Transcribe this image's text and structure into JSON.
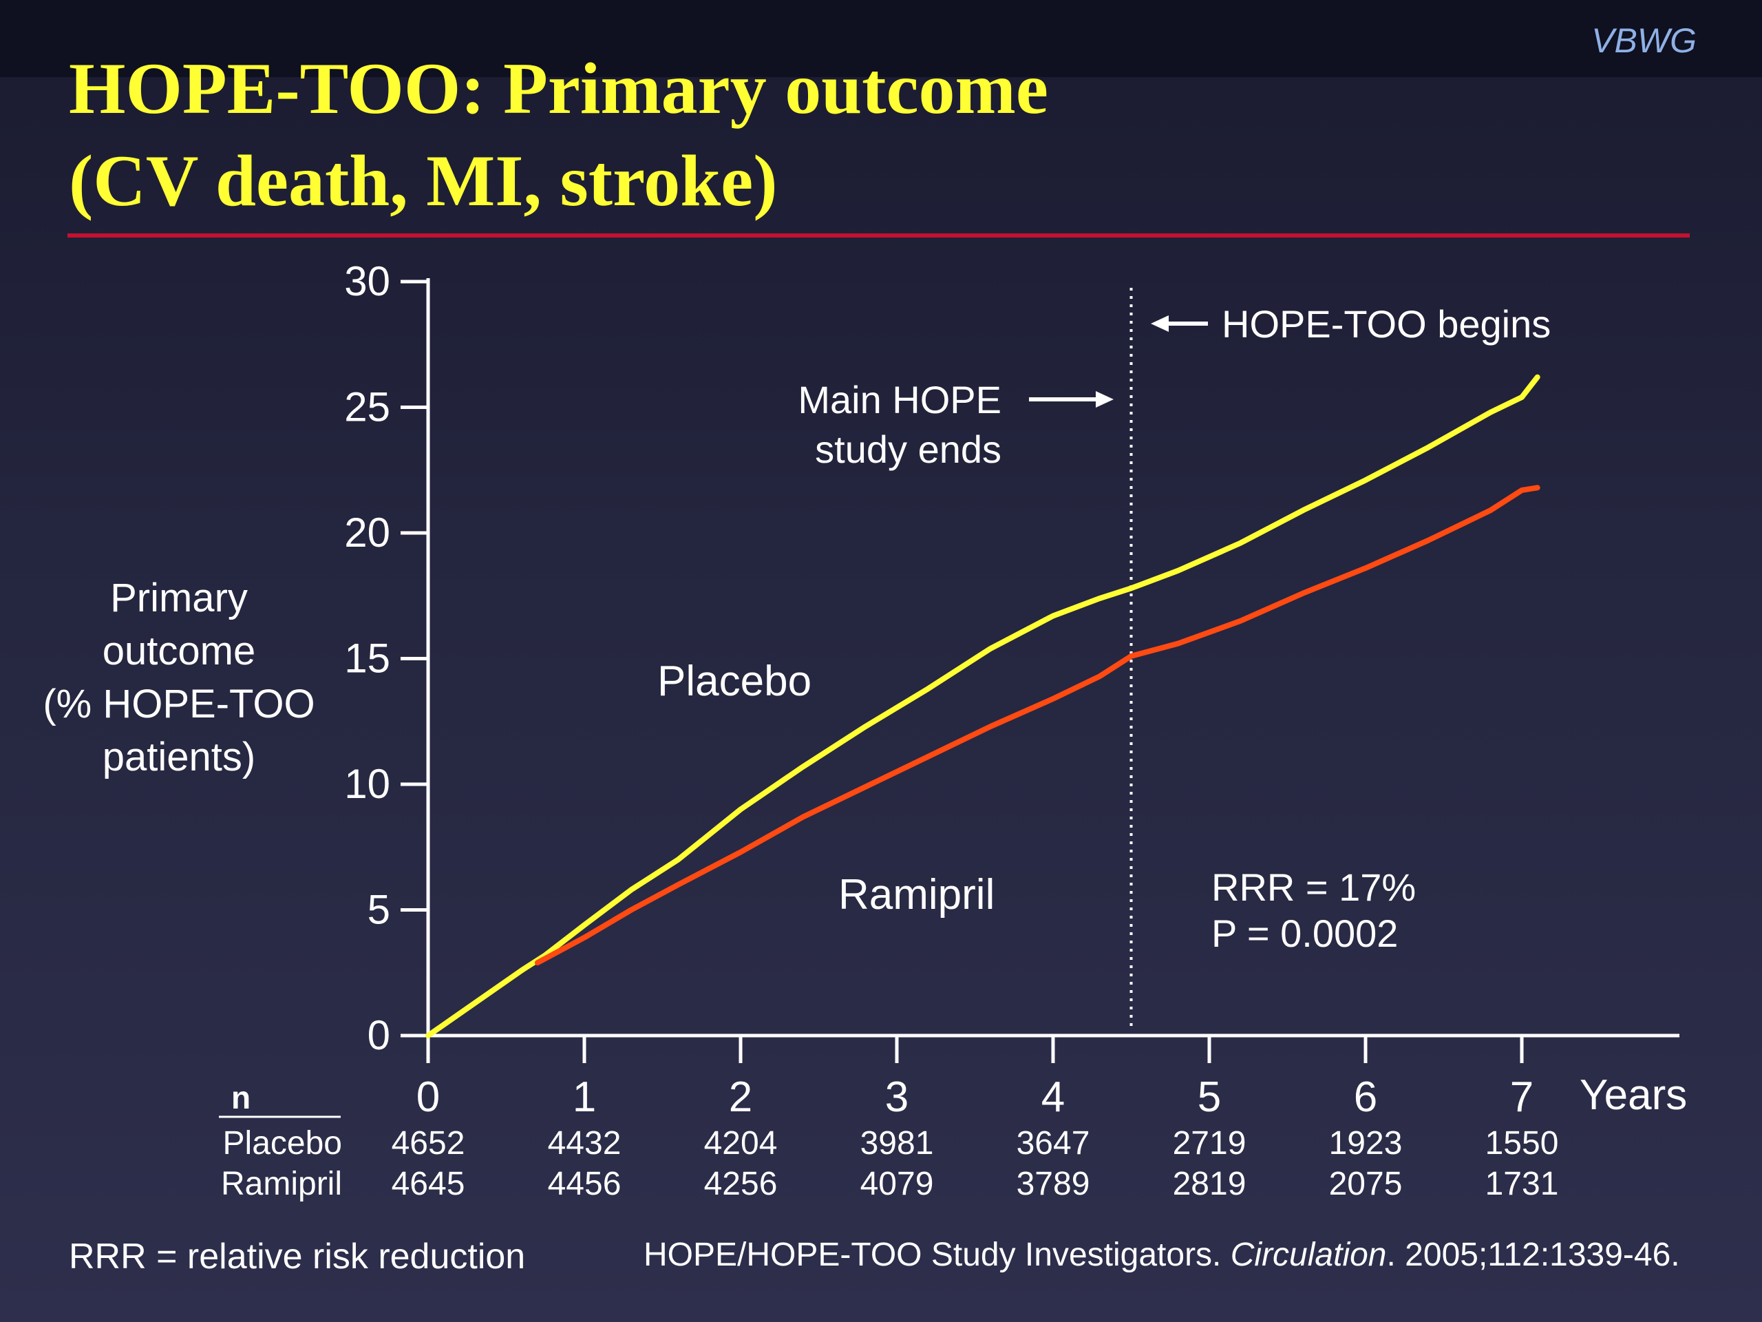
{
  "brand": "VBWG",
  "title": {
    "line1": "HOPE-TOO: Primary outcome",
    "line2": "(CV death, MI, stroke)"
  },
  "colors": {
    "title": "#ffff33",
    "rule": "#c3122f",
    "placebo": "#ffff33",
    "ramipril": "#ff4a12",
    "brand": "#8fb0e6"
  },
  "chart_data": {
    "type": "line",
    "xlabel": "Years",
    "ylabel_lines": [
      "Primary",
      "outcome",
      "(% HOPE-TOO",
      "patients)"
    ],
    "xlim": [
      0,
      8
    ],
    "ylim": [
      0,
      30
    ],
    "xticks": [
      "0",
      "1",
      "2",
      "3",
      "4",
      "5",
      "6",
      "7"
    ],
    "yticks": [
      "0",
      "5",
      "10",
      "15",
      "20",
      "25",
      "30"
    ],
    "grid": false,
    "series": [
      {
        "name": "Placebo",
        "color": "#ffff33",
        "x": [
          0,
          0.3,
          0.6,
          0.75,
          1.0,
          1.3,
          1.6,
          2.0,
          2.4,
          2.8,
          3.2,
          3.6,
          4.0,
          4.3,
          4.5,
          4.8,
          5.2,
          5.6,
          6.0,
          6.4,
          6.8,
          7.0,
          7.1
        ],
        "y": [
          0,
          1.3,
          2.6,
          3.2,
          4.4,
          5.8,
          7.0,
          9.0,
          10.7,
          12.3,
          13.8,
          15.4,
          16.7,
          17.4,
          17.8,
          18.5,
          19.6,
          20.9,
          22.1,
          23.4,
          24.8,
          25.4,
          26.2
        ]
      },
      {
        "name": "Ramipril",
        "color": "#ff4a12",
        "x": [
          0.7,
          1.0,
          1.3,
          1.6,
          2.0,
          2.4,
          2.8,
          3.2,
          3.6,
          4.0,
          4.3,
          4.5,
          4.8,
          5.2,
          5.6,
          6.0,
          6.4,
          6.8,
          7.0,
          7.1
        ],
        "y": [
          2.9,
          3.9,
          5.0,
          6.0,
          7.3,
          8.7,
          9.9,
          11.1,
          12.3,
          13.4,
          14.3,
          15.1,
          15.6,
          16.5,
          17.6,
          18.6,
          19.7,
          20.9,
          21.7,
          21.8
        ]
      }
    ],
    "study_end_year": 4.5,
    "annotations": {
      "hope_too_begins": "HOPE-TOO begins",
      "main_hope_line1": "Main HOPE",
      "main_hope_line2": "study ends",
      "placebo_label": "Placebo",
      "ramipril_label": "Ramipril",
      "rrr": "RRR = 17%",
      "p_value": "P = 0.0002"
    },
    "n_table": {
      "header": "n",
      "rows": [
        {
          "label": "Placebo",
          "values": [
            "4652",
            "4432",
            "4204",
            "3981",
            "3647",
            "2719",
            "1923",
            "1550"
          ]
        },
        {
          "label": "Ramipril",
          "values": [
            "4645",
            "4456",
            "4256",
            "4079",
            "3789",
            "2819",
            "2075",
            "1731"
          ]
        }
      ]
    }
  },
  "footer": {
    "abbreviation": "RRR = relative risk reduction",
    "citation_authors": "HOPE/HOPE-TOO Study Investigators. ",
    "citation_journal": "Circulation",
    "citation_rest": ". 2005;112:1339-46."
  }
}
